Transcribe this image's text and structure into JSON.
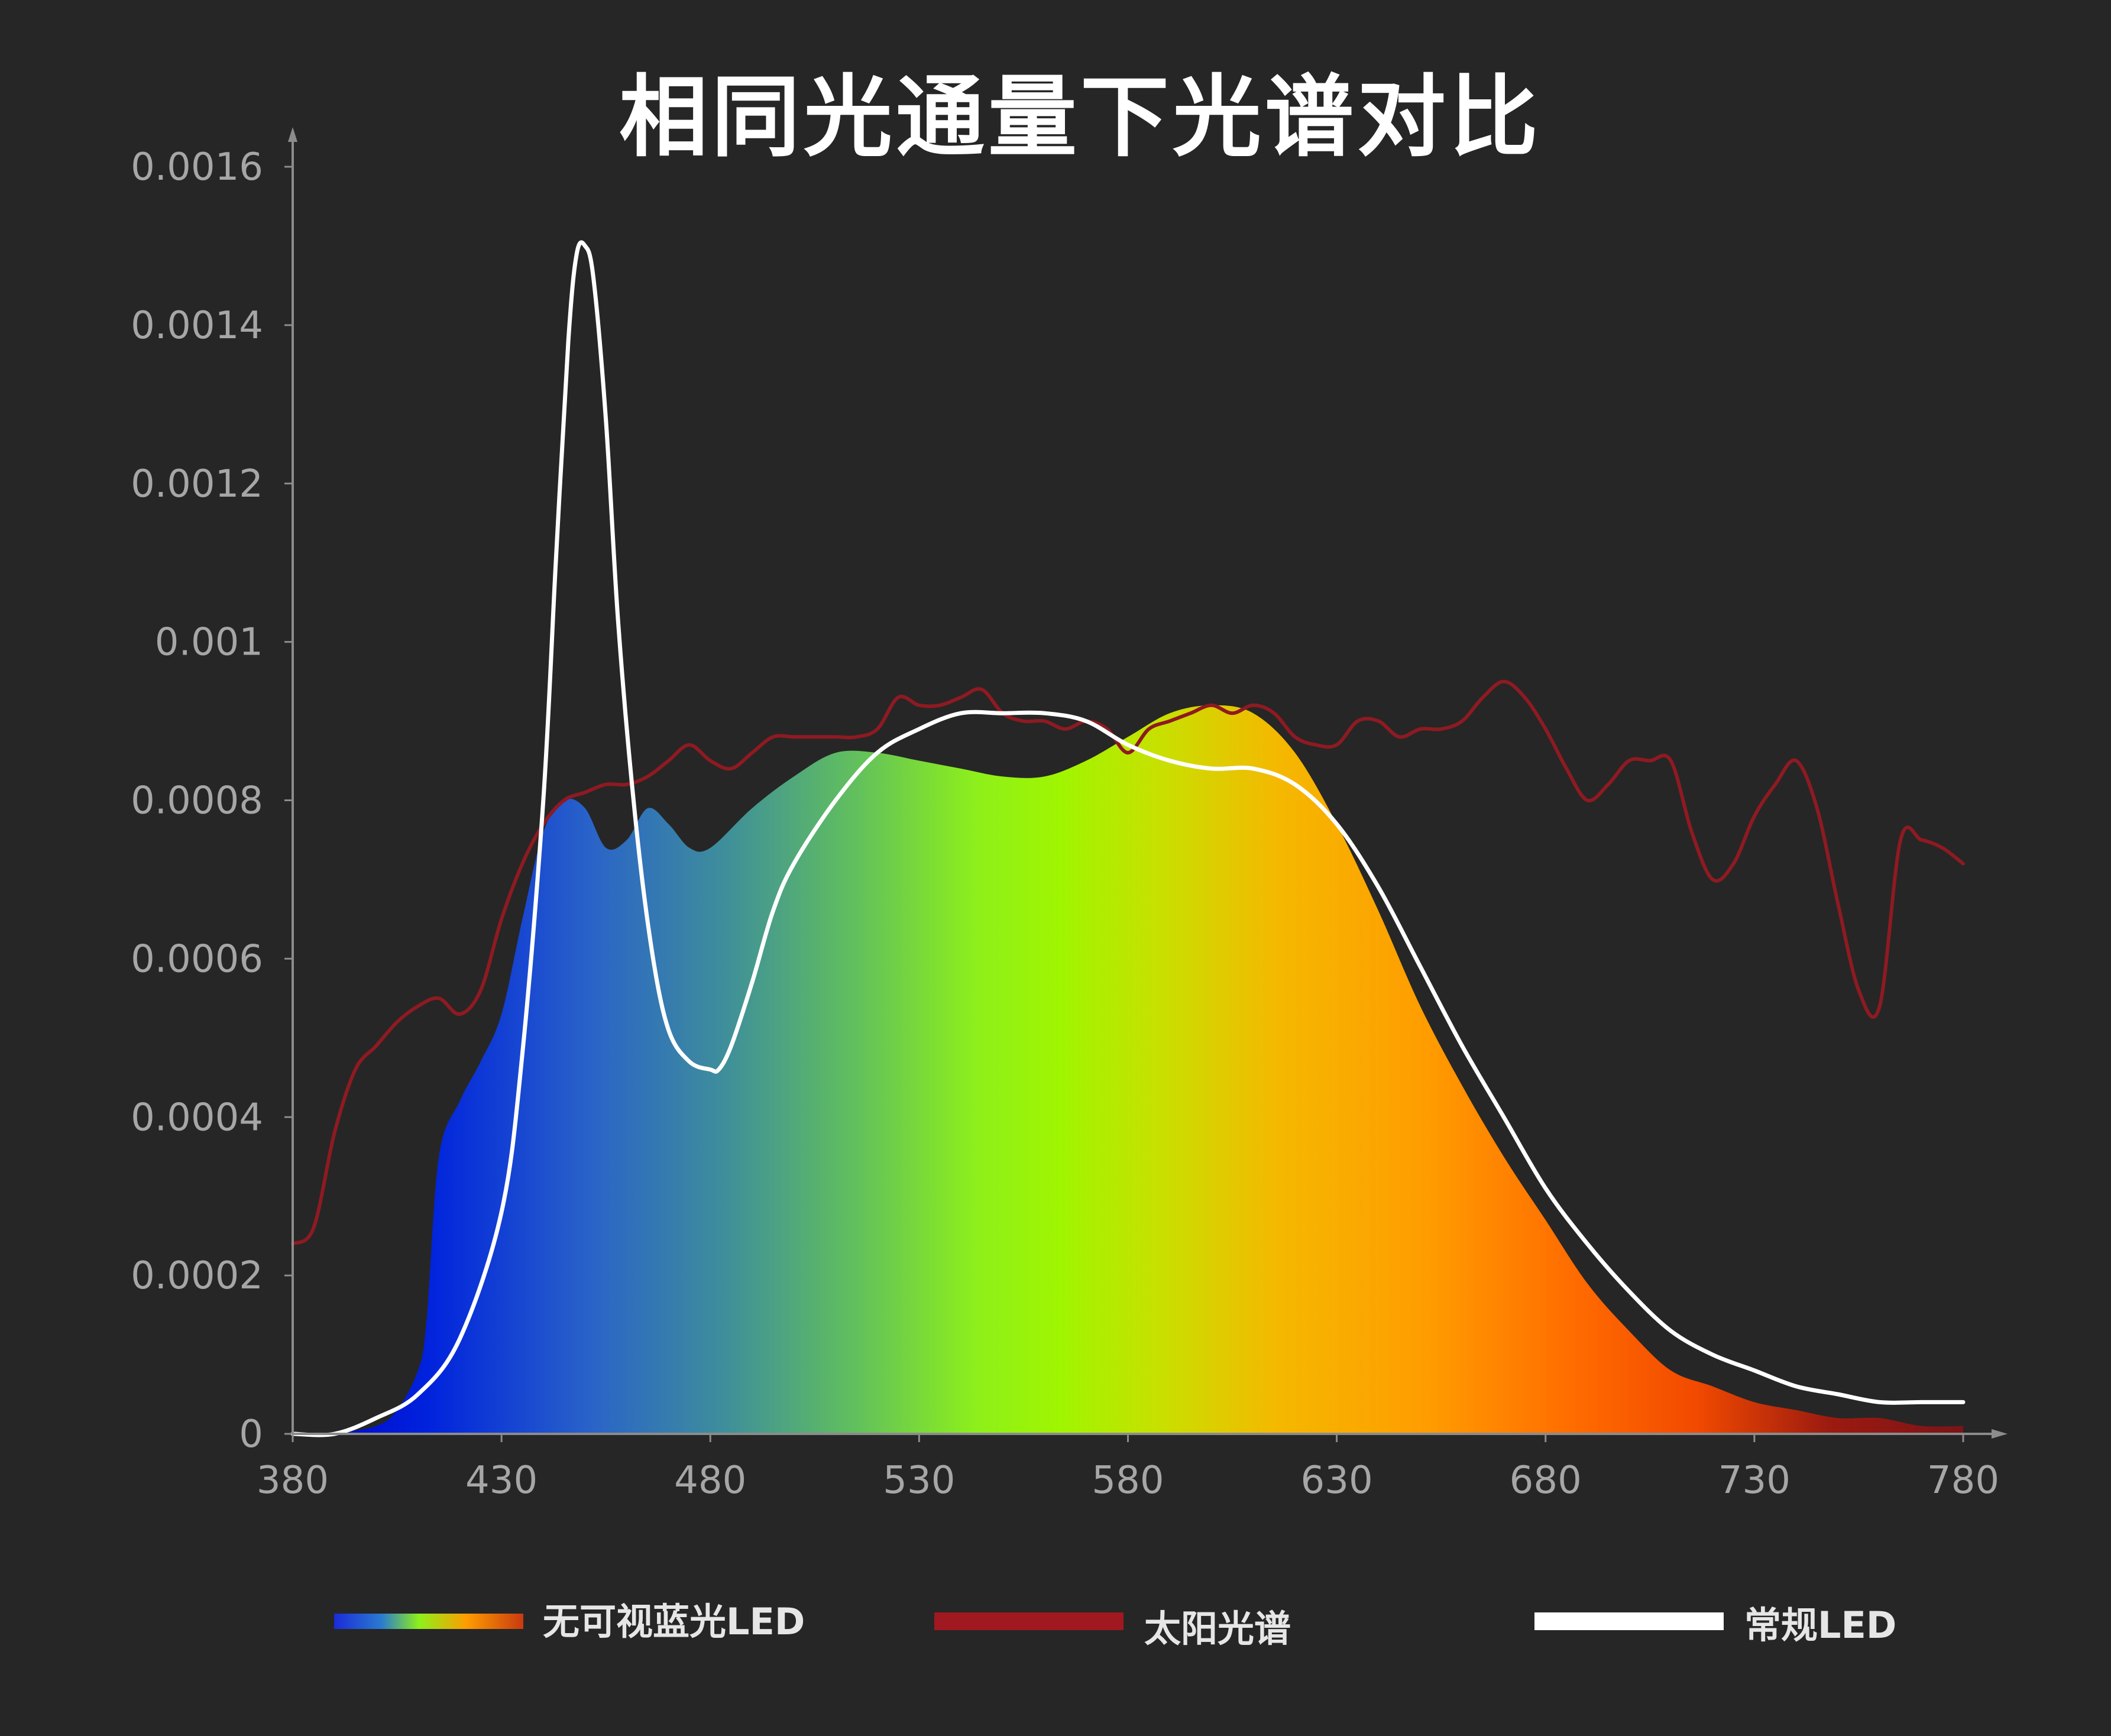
{
  "chart_data": {
    "type": "area",
    "title": "相同光通量下光谱对比",
    "xlabel": "",
    "ylabel": "",
    "xlim": [
      380,
      780
    ],
    "ylim": [
      0,
      0.0016
    ],
    "x_ticks": [
      "380",
      "430",
      "480",
      "530",
      "580",
      "630",
      "680",
      "730",
      "780"
    ],
    "y_ticks": [
      "0",
      "0.0002",
      "0.0004",
      "0.0006",
      "0.0008",
      "0.001",
      "0.0012",
      "0.0014",
      "0.0016"
    ],
    "grid": false,
    "legend_position": "bottom",
    "series": [
      {
        "name": "无可视蓝光LED",
        "style": "gradient-area",
        "x": [
          390,
          400,
          405,
          410,
          412,
          415,
          420,
          425,
          430,
          435,
          440,
          445,
          450,
          455,
          460,
          465,
          470,
          475,
          480,
          490,
          500,
          510,
          520,
          530,
          540,
          550,
          560,
          570,
          580,
          590,
          600,
          610,
          620,
          630,
          640,
          650,
          660,
          670,
          680,
          690,
          700,
          710,
          720,
          730,
          740,
          750,
          760,
          770,
          780
        ],
        "y": [
          0.0,
          1e-05,
          3e-05,
          8e-05,
          0.00014,
          0.00035,
          0.00042,
          0.00047,
          0.00053,
          0.00065,
          0.00076,
          0.0008,
          0.00079,
          0.00074,
          0.00075,
          0.00079,
          0.00077,
          0.00074,
          0.00074,
          0.00079,
          0.00083,
          0.00086,
          0.00086,
          0.00085,
          0.00084,
          0.00083,
          0.00083,
          0.00085,
          0.00088,
          0.00091,
          0.00092,
          0.00091,
          0.00086,
          0.00077,
          0.00066,
          0.00054,
          0.00044,
          0.00035,
          0.00027,
          0.00019,
          0.00013,
          8e-05,
          6e-05,
          4e-05,
          3e-05,
          2e-05,
          2e-05,
          1e-05,
          1e-05
        ],
        "color": "gradient"
      },
      {
        "name": "太阳光谱",
        "style": "line",
        "x": [
          380,
          385,
          390,
          395,
          400,
          405,
          410,
          415,
          420,
          425,
          430,
          435,
          440,
          445,
          450,
          455,
          460,
          465,
          470,
          475,
          480,
          485,
          490,
          495,
          500,
          505,
          510,
          515,
          520,
          525,
          530,
          535,
          540,
          545,
          550,
          555,
          560,
          565,
          570,
          575,
          580,
          585,
          590,
          595,
          600,
          605,
          610,
          615,
          620,
          625,
          630,
          635,
          640,
          645,
          650,
          655,
          660,
          665,
          670,
          675,
          680,
          685,
          690,
          695,
          700,
          705,
          710,
          715,
          720,
          725,
          730,
          735,
          740,
          745,
          750,
          755,
          760,
          765,
          770,
          775,
          780
        ],
        "y": [
          0.00024,
          0.00026,
          0.00038,
          0.00046,
          0.00049,
          0.00052,
          0.00054,
          0.00055,
          0.00053,
          0.00056,
          0.00065,
          0.00072,
          0.00077,
          0.0008,
          0.00081,
          0.00082,
          0.00082,
          0.00083,
          0.00085,
          0.00087,
          0.00085,
          0.00084,
          0.00086,
          0.00088,
          0.00088,
          0.00088,
          0.00088,
          0.00088,
          0.00089,
          0.00093,
          0.00092,
          0.00092,
          0.00093,
          0.00094,
          0.00091,
          0.0009,
          0.0009,
          0.00089,
          0.0009,
          0.00089,
          0.00086,
          0.00089,
          0.0009,
          0.00091,
          0.00092,
          0.00091,
          0.00092,
          0.00091,
          0.00088,
          0.00087,
          0.00087,
          0.0009,
          0.0009,
          0.00088,
          0.00089,
          0.00089,
          0.0009,
          0.00093,
          0.00095,
          0.00093,
          0.00089,
          0.00084,
          0.0008,
          0.00082,
          0.00085,
          0.00085,
          0.00085,
          0.00076,
          0.0007,
          0.00072,
          0.00078,
          0.00082,
          0.00085,
          0.00079,
          0.00067,
          0.00056,
          0.00054,
          0.00075,
          0.00075,
          0.00074,
          0.00072
        ],
        "color": "#8e1a22"
      },
      {
        "name": "常规LED",
        "style": "line",
        "x": [
          380,
          390,
          400,
          410,
          420,
          430,
          435,
          440,
          443,
          446,
          448,
          450,
          452,
          455,
          458,
          462,
          466,
          470,
          475,
          480,
          482,
          485,
          490,
          495,
          500,
          510,
          520,
          530,
          540,
          550,
          560,
          570,
          580,
          590,
          600,
          610,
          620,
          630,
          640,
          650,
          660,
          670,
          680,
          690,
          700,
          710,
          720,
          730,
          740,
          750,
          760,
          770,
          780
        ],
        "y": [
          0.0,
          0.0,
          2e-05,
          5e-05,
          0.00012,
          0.00028,
          0.00048,
          0.0008,
          0.0011,
          0.00138,
          0.00149,
          0.0015,
          0.00146,
          0.00128,
          0.00102,
          0.00078,
          0.00061,
          0.00051,
          0.00047,
          0.00046,
          0.00046,
          0.00049,
          0.00057,
          0.00066,
          0.00072,
          0.0008,
          0.00086,
          0.00089,
          0.00091,
          0.00091,
          0.00091,
          0.0009,
          0.00087,
          0.00085,
          0.00084,
          0.00084,
          0.00082,
          0.00077,
          0.00069,
          0.00059,
          0.00049,
          0.0004,
          0.00031,
          0.00024,
          0.00018,
          0.00013,
          0.0001,
          8e-05,
          6e-05,
          5e-05,
          4e-05,
          4e-05,
          4e-05
        ],
        "color": "#ffffff"
      }
    ]
  },
  "colors": {
    "background": "#262626",
    "axis": "#8c8c8c",
    "sun": "#8e1a22",
    "led": "#ffffff"
  }
}
